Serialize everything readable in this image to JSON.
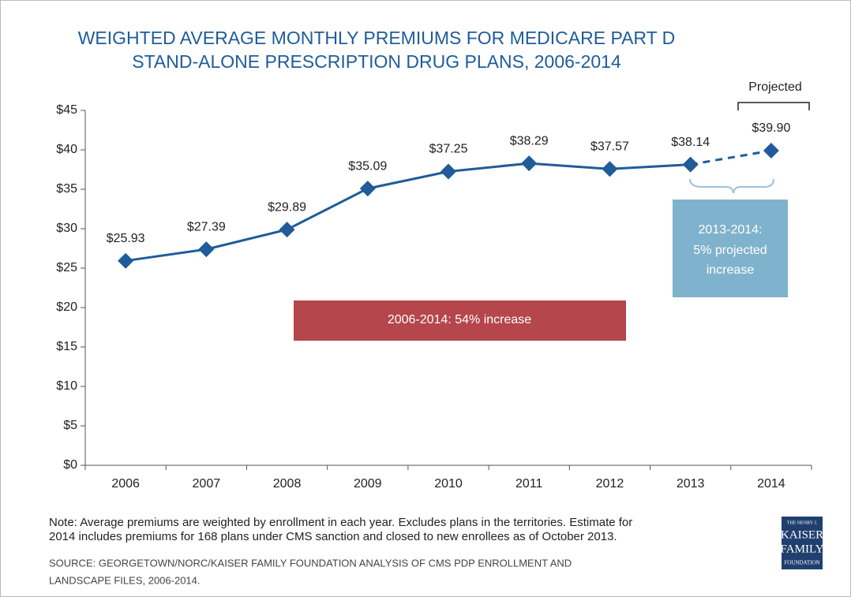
{
  "chart_data": {
    "type": "line",
    "title": [
      "WEIGHTED AVERAGE MONTHLY PREMIUMS FOR MEDICARE PART D",
      "STAND-ALONE PRESCRIPTION DRUG PLANS, 2006-2014"
    ],
    "categories": [
      "2006",
      "2007",
      "2008",
      "2009",
      "2010",
      "2011",
      "2012",
      "2013",
      "2014"
    ],
    "values": [
      25.93,
      27.39,
      29.89,
      35.09,
      37.25,
      38.29,
      37.57,
      38.14,
      39.9
    ],
    "value_labels": [
      "$25.93",
      "$27.39",
      "$29.89",
      "$35.09",
      "$37.25",
      "$38.29",
      "$37.57",
      "$38.14",
      "$39.90"
    ],
    "color": "#1f5c99",
    "projected_index": 8,
    "ylim": [
      0,
      45
    ],
    "yticks": [
      {
        "value": 0,
        "label": "$0"
      },
      {
        "value": 5,
        "label": "$5"
      },
      {
        "value": 10,
        "label": "$10"
      },
      {
        "value": 15,
        "label": "$15"
      },
      {
        "value": 20,
        "label": "$20"
      },
      {
        "value": 25,
        "label": "$25"
      },
      {
        "value": 30,
        "label": "$30"
      },
      {
        "value": 35,
        "label": "$35"
      },
      {
        "value": 40,
        "label": "$40"
      },
      {
        "value": 45,
        "label": "$45"
      }
    ],
    "annotations": {
      "projected": "Projected",
      "overall": "2006-2014: 54% increase",
      "recent": [
        "2013-2014:",
        "5% projected",
        "increase"
      ]
    },
    "note": [
      "Note: Average premiums are weighted by enrollment in each year. Excludes plans in the territories. Estimate for",
      "2014 includes premiums for 168 plans under CMS sanction and closed to new enrollees as of October 2013."
    ],
    "source": [
      "SOURCE: GEORGETOWN/NORC/KAISER FAMILY FOUNDATION ANALYSIS OF CMS PDP ENROLLMENT AND",
      "LANDSCAPE FILES, 2006-2014."
    ],
    "logo": [
      "THE HENRY J.",
      "KAISER",
      "FAMILY",
      "FOUNDATION"
    ]
  }
}
